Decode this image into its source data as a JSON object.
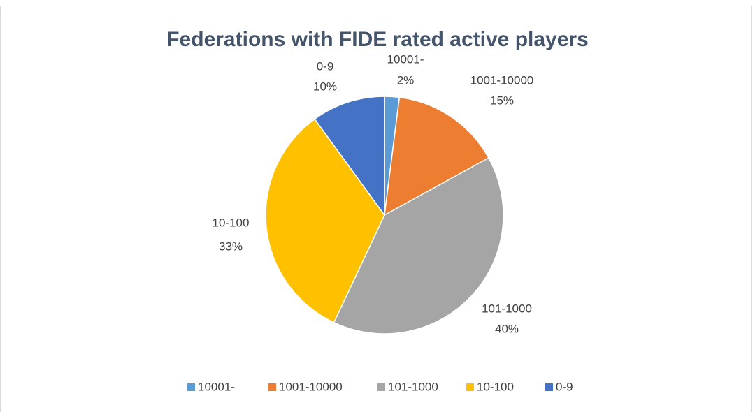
{
  "chart_data": {
    "type": "pie",
    "title": "Federations with FIDE rated active players",
    "categories": [
      "10001-",
      "1001-10000",
      "101-1000",
      "10-100",
      "0-9"
    ],
    "values": [
      2,
      15,
      40,
      33,
      10
    ],
    "value_labels": [
      "2%",
      "15%",
      "40%",
      "33%",
      "10%"
    ],
    "colors": [
      "#5b9bd5",
      "#ed7d31",
      "#a5a5a5",
      "#ffc000",
      "#4472c4"
    ],
    "legend": "bottom"
  }
}
